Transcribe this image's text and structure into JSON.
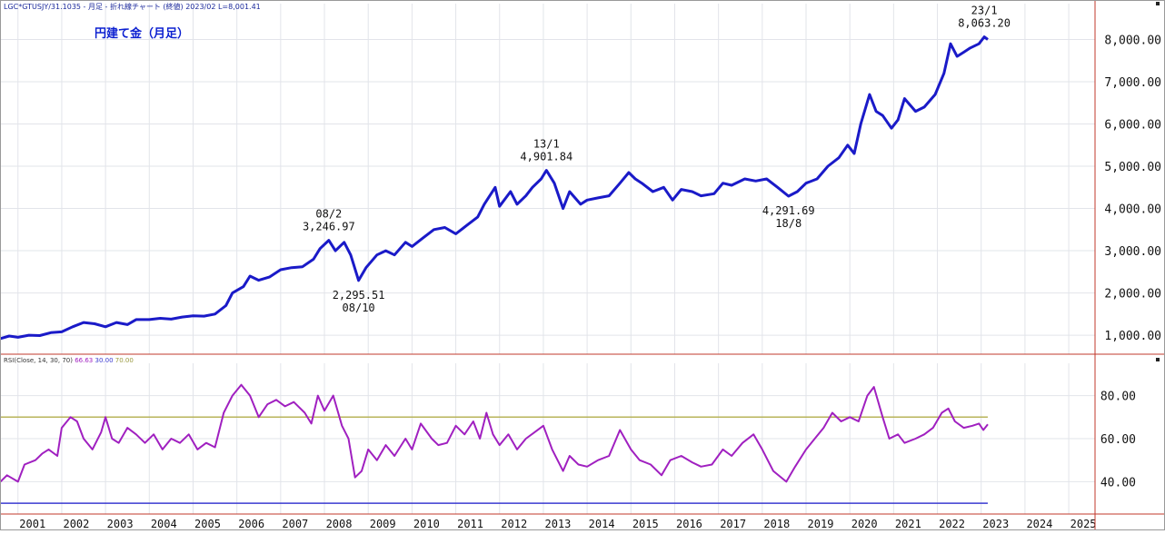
{
  "header_text": "LGC*GTUSJY/31.1035 - 月足 - 折れ線チャート (終値) 2023/02 L=8,001.41",
  "title": "円建て金（月足）",
  "rsi_label": {
    "prefix": "RSI(Close, 14, 30, 70)",
    "value": "66.63",
    "low": "30.00",
    "high": "70.00"
  },
  "colors": {
    "price_line": "#1a1ac8",
    "rsi_line": "#a020c0",
    "upper_band": "#b8b45a",
    "lower_band": "#3a3ad0",
    "divider": "#c0392b",
    "grid": "#e2e4ea",
    "title": "#0b1fd0",
    "rsi_value": "#a020c0",
    "rsi_low": "#3a3ad0",
    "rsi_high": "#9a9a40"
  },
  "chart_data": [
    {
      "type": "line",
      "series": [
        {
          "values": [
            [
              2000.6,
              920
            ],
            [
              2000.8,
              980
            ],
            [
              2001.0,
              950
            ],
            [
              2001.25,
              1000
            ],
            [
              2001.5,
              990
            ],
            [
              2001.75,
              1060
            ],
            [
              2002.0,
              1080
            ],
            [
              2002.25,
              1200
            ],
            [
              2002.5,
              1300
            ],
            [
              2002.75,
              1270
            ],
            [
              2003.0,
              1200
            ],
            [
              2003.25,
              1300
            ],
            [
              2003.5,
              1250
            ],
            [
              2003.7,
              1370
            ],
            [
              2004.0,
              1370
            ],
            [
              2004.25,
              1400
            ],
            [
              2004.5,
              1380
            ],
            [
              2004.75,
              1430
            ],
            [
              2005.0,
              1460
            ],
            [
              2005.25,
              1450
            ],
            [
              2005.5,
              1500
            ],
            [
              2005.75,
              1700
            ],
            [
              2005.9,
              2000
            ],
            [
              2006.15,
              2150
            ],
            [
              2006.3,
              2400
            ],
            [
              2006.5,
              2300
            ],
            [
              2006.75,
              2380
            ],
            [
              2007.0,
              2550
            ],
            [
              2007.25,
              2600
            ],
            [
              2007.5,
              2620
            ],
            [
              2007.75,
              2800
            ],
            [
              2007.9,
              3050
            ],
            [
              2008.1,
              3246.97
            ],
            [
              2008.25,
              3000
            ],
            [
              2008.45,
              3200
            ],
            [
              2008.6,
              2900
            ],
            [
              2008.78,
              2295.51
            ],
            [
              2008.95,
              2600
            ],
            [
              2009.2,
              2900
            ],
            [
              2009.4,
              3000
            ],
            [
              2009.6,
              2900
            ],
            [
              2009.85,
              3200
            ],
            [
              2010.0,
              3100
            ],
            [
              2010.25,
              3300
            ],
            [
              2010.5,
              3500
            ],
            [
              2010.75,
              3550
            ],
            [
              2011.0,
              3400
            ],
            [
              2011.25,
              3600
            ],
            [
              2011.5,
              3800
            ],
            [
              2011.65,
              4100
            ],
            [
              2011.9,
              4500
            ],
            [
              2012.0,
              4050
            ],
            [
              2012.25,
              4400
            ],
            [
              2012.4,
              4100
            ],
            [
              2012.6,
              4300
            ],
            [
              2012.75,
              4500
            ],
            [
              2012.95,
              4700
            ],
            [
              2013.07,
              4901.84
            ],
            [
              2013.25,
              4600
            ],
            [
              2013.45,
              4000
            ],
            [
              2013.6,
              4400
            ],
            [
              2013.85,
              4100
            ],
            [
              2014.0,
              4200
            ],
            [
              2014.25,
              4250
            ],
            [
              2014.5,
              4300
            ],
            [
              2014.75,
              4600
            ],
            [
              2014.95,
              4850
            ],
            [
              2015.1,
              4700
            ],
            [
              2015.25,
              4600
            ],
            [
              2015.5,
              4400
            ],
            [
              2015.75,
              4500
            ],
            [
              2015.95,
              4200
            ],
            [
              2016.15,
              4450
            ],
            [
              2016.4,
              4400
            ],
            [
              2016.6,
              4300
            ],
            [
              2016.9,
              4350
            ],
            [
              2017.1,
              4600
            ],
            [
              2017.3,
              4550
            ],
            [
              2017.6,
              4700
            ],
            [
              2017.85,
              4650
            ],
            [
              2018.1,
              4700
            ],
            [
              2018.35,
              4500
            ],
            [
              2018.6,
              4291.69
            ],
            [
              2018.8,
              4400
            ],
            [
              2019.0,
              4600
            ],
            [
              2019.25,
              4700
            ],
            [
              2019.5,
              5000
            ],
            [
              2019.75,
              5200
            ],
            [
              2019.95,
              5500
            ],
            [
              2020.1,
              5300
            ],
            [
              2020.25,
              6000
            ],
            [
              2020.45,
              6700
            ],
            [
              2020.6,
              6300
            ],
            [
              2020.75,
              6200
            ],
            [
              2020.95,
              5900
            ],
            [
              2021.1,
              6100
            ],
            [
              2021.25,
              6600
            ],
            [
              2021.5,
              6300
            ],
            [
              2021.7,
              6400
            ],
            [
              2021.95,
              6700
            ],
            [
              2022.15,
              7200
            ],
            [
              2022.3,
              7900
            ],
            [
              2022.45,
              7600
            ],
            [
              2022.6,
              7700
            ],
            [
              2022.75,
              7800
            ],
            [
              2022.95,
              7900
            ],
            [
              2023.07,
              8063.2
            ],
            [
              2023.15,
              8001.41
            ]
          ]
        }
      ],
      "y_ticks": [
        1000,
        2000,
        3000,
        4000,
        5000,
        6000,
        7000,
        8000
      ],
      "y_tick_labels": [
        "1,000.00",
        "2,000.00",
        "3,000.00",
        "4,000.00",
        "5,000.00",
        "6,000.00",
        "7,000.00",
        "8,000.00"
      ],
      "ylim": [
        550,
        8850
      ],
      "annotations": [
        {
          "x": 2008.1,
          "y": 3246.97,
          "line1": "08/2",
          "line2": "3,246.97",
          "pos": "above"
        },
        {
          "x": 2008.78,
          "y": 2295.51,
          "line1": "2,295.51",
          "line2": "08/10",
          "pos": "below"
        },
        {
          "x": 2013.07,
          "y": 4901.84,
          "line1": "13/1",
          "line2": "4,901.84",
          "pos": "above"
        },
        {
          "x": 2018.6,
          "y": 4291.69,
          "line1": "4,291.69",
          "line2": "18/8",
          "pos": "below"
        },
        {
          "x": 2023.07,
          "y": 8063.2,
          "line1": "23/1",
          "line2": "8,063.20",
          "pos": "above"
        }
      ]
    },
    {
      "type": "line",
      "series": [
        {
          "values": [
            [
              2000.6,
              40
            ],
            [
              2000.75,
              43
            ],
            [
              2001.0,
              40
            ],
            [
              2001.15,
              48
            ],
            [
              2001.4,
              50
            ],
            [
              2001.55,
              53
            ],
            [
              2001.7,
              55
            ],
            [
              2001.9,
              52
            ],
            [
              2002.0,
              65
            ],
            [
              2002.2,
              70
            ],
            [
              2002.35,
              68
            ],
            [
              2002.5,
              60
            ],
            [
              2002.7,
              55
            ],
            [
              2002.9,
              63
            ],
            [
              2003.0,
              70
            ],
            [
              2003.15,
              60
            ],
            [
              2003.3,
              58
            ],
            [
              2003.5,
              65
            ],
            [
              2003.7,
              62
            ],
            [
              2003.9,
              58
            ],
            [
              2004.1,
              62
            ],
            [
              2004.3,
              55
            ],
            [
              2004.5,
              60
            ],
            [
              2004.7,
              58
            ],
            [
              2004.9,
              62
            ],
            [
              2005.1,
              55
            ],
            [
              2005.3,
              58
            ],
            [
              2005.5,
              56
            ],
            [
              2005.7,
              72
            ],
            [
              2005.9,
              80
            ],
            [
              2006.1,
              85
            ],
            [
              2006.3,
              80
            ],
            [
              2006.5,
              70
            ],
            [
              2006.7,
              76
            ],
            [
              2006.9,
              78
            ],
            [
              2007.1,
              75
            ],
            [
              2007.3,
              77
            ],
            [
              2007.55,
              72
            ],
            [
              2007.7,
              67
            ],
            [
              2007.85,
              80
            ],
            [
              2008.0,
              73
            ],
            [
              2008.2,
              80
            ],
            [
              2008.4,
              66
            ],
            [
              2008.55,
              60
            ],
            [
              2008.7,
              42
            ],
            [
              2008.85,
              45
            ],
            [
              2009.0,
              55
            ],
            [
              2009.2,
              50
            ],
            [
              2009.4,
              57
            ],
            [
              2009.6,
              52
            ],
            [
              2009.85,
              60
            ],
            [
              2010.0,
              55
            ],
            [
              2010.2,
              67
            ],
            [
              2010.45,
              60
            ],
            [
              2010.6,
              57
            ],
            [
              2010.8,
              58
            ],
            [
              2011.0,
              66
            ],
            [
              2011.2,
              62
            ],
            [
              2011.4,
              68
            ],
            [
              2011.55,
              60
            ],
            [
              2011.7,
              72
            ],
            [
              2011.85,
              62
            ],
            [
              2012.0,
              57
            ],
            [
              2012.2,
              62
            ],
            [
              2012.4,
              55
            ],
            [
              2012.6,
              60
            ],
            [
              2012.8,
              63
            ],
            [
              2013.0,
              66
            ],
            [
              2013.2,
              55
            ],
            [
              2013.45,
              45
            ],
            [
              2013.6,
              52
            ],
            [
              2013.8,
              48
            ],
            [
              2014.0,
              47
            ],
            [
              2014.25,
              50
            ],
            [
              2014.5,
              52
            ],
            [
              2014.75,
              64
            ],
            [
              2015.0,
              55
            ],
            [
              2015.2,
              50
            ],
            [
              2015.45,
              48
            ],
            [
              2015.7,
              43
            ],
            [
              2015.9,
              50
            ],
            [
              2016.15,
              52
            ],
            [
              2016.4,
              49
            ],
            [
              2016.6,
              47
            ],
            [
              2016.85,
              48
            ],
            [
              2017.1,
              55
            ],
            [
              2017.3,
              52
            ],
            [
              2017.55,
              58
            ],
            [
              2017.8,
              62
            ],
            [
              2018.0,
              55
            ],
            [
              2018.25,
              45
            ],
            [
              2018.55,
              40
            ],
            [
              2018.75,
              47
            ],
            [
              2019.0,
              55
            ],
            [
              2019.2,
              60
            ],
            [
              2019.4,
              65
            ],
            [
              2019.6,
              72
            ],
            [
              2019.8,
              68
            ],
            [
              2020.0,
              70
            ],
            [
              2020.2,
              68
            ],
            [
              2020.4,
              80
            ],
            [
              2020.55,
              84
            ],
            [
              2020.75,
              70
            ],
            [
              2020.9,
              60
            ],
            [
              2021.1,
              62
            ],
            [
              2021.25,
              58
            ],
            [
              2021.5,
              60
            ],
            [
              2021.7,
              62
            ],
            [
              2021.9,
              65
            ],
            [
              2022.1,
              72
            ],
            [
              2022.25,
              74
            ],
            [
              2022.4,
              68
            ],
            [
              2022.6,
              65
            ],
            [
              2022.8,
              66
            ],
            [
              2022.95,
              67
            ],
            [
              2023.05,
              64
            ],
            [
              2023.15,
              66.63
            ]
          ]
        }
      ],
      "y_ticks": [
        40,
        60,
        80
      ],
      "y_tick_labels": [
        "40.00",
        "60.00",
        "80.00"
      ],
      "ylim": [
        25,
        95
      ],
      "bands": [
        30,
        70
      ],
      "x_ticks": [
        2001,
        2002,
        2003,
        2004,
        2005,
        2006,
        2007,
        2008,
        2009,
        2010,
        2011,
        2012,
        2013,
        2014,
        2015,
        2016,
        2017,
        2018,
        2019,
        2020,
        2021,
        2022,
        2023,
        2024,
        2025
      ],
      "x_tick_labels": [
        "2001",
        "2002",
        "2003",
        "2004",
        "2005",
        "2006",
        "2007",
        "2008",
        "2009",
        "2010",
        "2011",
        "2012",
        "2013",
        "2014",
        "2015",
        "2016",
        "2017",
        "2018",
        "2019",
        "2020",
        "2021",
        "2022",
        "2023",
        "2024",
        "2025"
      ],
      "xlim": [
        2000.59,
        2025.6
      ]
    }
  ]
}
